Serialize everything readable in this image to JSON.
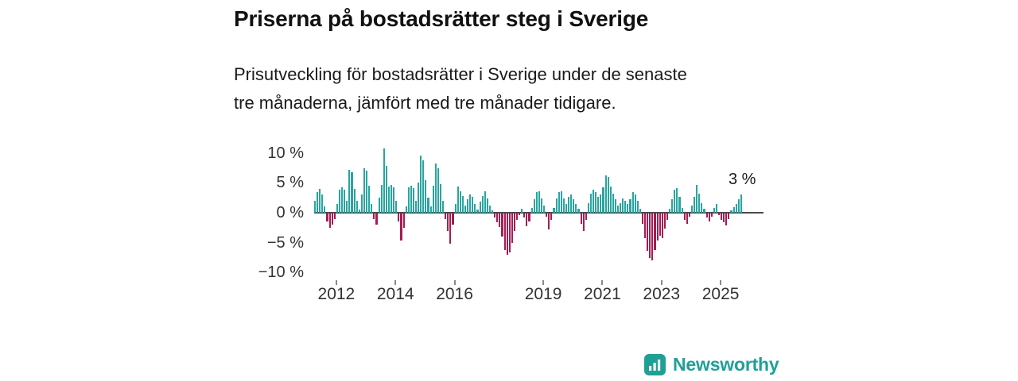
{
  "header": {
    "title": "Priserna på bostadsrätter steg i Sverige",
    "subtitle_line1": "Prisutveckling för bostadsrätter i Sverige under de senaste",
    "subtitle_line2": "tre månaderna, jämfört med tre månader tidigare."
  },
  "chart_data": {
    "type": "bar",
    "title": "Priserna på bostadsrätter steg i Sverige",
    "subtitle": "Prisutveckling för bostadsrätter i Sverige under de senaste tre månaderna, jämfört med tre månader tidigare.",
    "unit": "%",
    "x_start_year": 2011.25,
    "points_per_year": 12,
    "x_axis_span_years": 15.2,
    "ylim": [
      -11.3,
      11.3
    ],
    "y_ticks": [
      10,
      5,
      0,
      -5,
      -10
    ],
    "y_tick_labels": [
      "10 %",
      "5 %",
      "0 %",
      "−5 %",
      "−10 %"
    ],
    "x_ticks": [
      2012,
      2014,
      2016,
      2019,
      2021,
      2023,
      2025
    ],
    "x_tick_labels": [
      "2012",
      "2014",
      "2016",
      "2019",
      "2021",
      "2023",
      "2025"
    ],
    "grid": false,
    "legend": "none",
    "values": [
      2.0,
      3.5,
      4.0,
      3.0,
      1.0,
      -1.5,
      -2.5,
      -2.0,
      -1.0,
      1.5,
      3.8,
      4.3,
      3.9,
      2.0,
      7.2,
      6.8,
      4.0,
      2.0,
      0.5,
      3.0,
      7.5,
      7.0,
      4.5,
      1.5,
      -1.0,
      -2.0,
      2.5,
      4.6,
      10.8,
      7.8,
      4.4,
      4.6,
      4.2,
      2.0,
      -1.5,
      -4.7,
      -2.5,
      1.0,
      4.3,
      4.5,
      4.1,
      2.0,
      5.0,
      9.6,
      8.8,
      5.5,
      2.5,
      1.0,
      4.5,
      8.3,
      7.4,
      4.8,
      2.0,
      -1.0,
      -3.0,
      -5.2,
      -2.0,
      1.5,
      4.4,
      3.6,
      2.8,
      1.2,
      2.2,
      3.1,
      2.6,
      1.4,
      0.5,
      1.8,
      2.8,
      3.6,
      2.4,
      1.2,
      0.4,
      -0.8,
      -1.6,
      -2.4,
      -4.0,
      -6.2,
      -7.0,
      -6.6,
      -5.0,
      -3.0,
      -1.2,
      -0.4,
      0.6,
      -0.8,
      -2.2,
      -1.4,
      0.8,
      2.2,
      3.4,
      3.6,
      2.4,
      1.2,
      -0.6,
      -2.8,
      -1.2,
      0.8,
      2.4,
      3.4,
      3.6,
      2.4,
      1.4,
      2.6,
      3.0,
      2.2,
      1.4,
      0.6,
      -1.8,
      -3.0,
      -1.2,
      1.6,
      3.2,
      3.8,
      3.4,
      2.6,
      3.0,
      4.2,
      6.3,
      6.0,
      4.4,
      3.2,
      2.2,
      1.2,
      1.6,
      2.4,
      2.0,
      1.4,
      2.2,
      3.4,
      3.0,
      2.0,
      0.6,
      -1.8,
      -4.2,
      -6.4,
      -7.6,
      -8.0,
      -6.2,
      -4.6,
      -3.8,
      -4.2,
      -2.6,
      -1.2,
      0.6,
      2.2,
      3.8,
      4.1,
      2.6,
      0.8,
      -1.2,
      -1.8,
      -0.6,
      1.2,
      2.6,
      4.6,
      3.2,
      1.6,
      0.6,
      -0.8,
      -1.4,
      -0.6,
      0.8,
      1.4,
      -0.4,
      -1.2,
      -1.6,
      -2.1,
      -1.0,
      0.4,
      0.9,
      1.4,
      2.2,
      3.0
    ],
    "annotation": {
      "text": "3 %",
      "value": 3
    },
    "colors": {
      "positive": "#29a5a0",
      "negative": "#a51c52",
      "zero_line": "#4a4a4a",
      "axis_text": "#333333"
    }
  },
  "branding": {
    "name": "Newsworthy",
    "color": "#1fa096",
    "logo_icon": "bar-chart-icon"
  }
}
